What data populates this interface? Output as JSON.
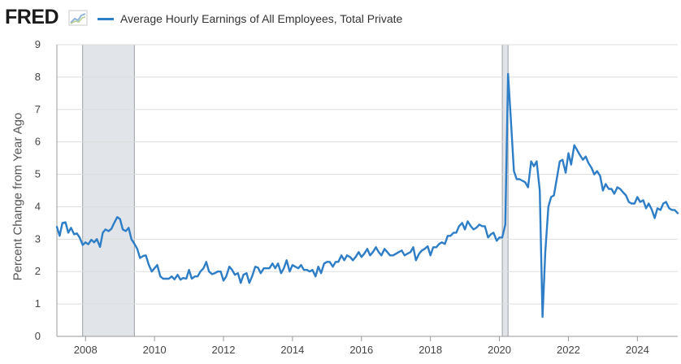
{
  "header": {
    "logo_text": "FRED",
    "logo_icon": "chart-line-icon"
  },
  "chart_data": {
    "type": "line",
    "title": "",
    "xlabel": "",
    "ylabel": "Percent Change from Year Ago",
    "xlim": [
      2007.17,
      2025.17
    ],
    "ylim": [
      0,
      9
    ],
    "grid": true,
    "legend_position": "top-left",
    "x_ticks": [
      "2008",
      "2010",
      "2012",
      "2014",
      "2016",
      "2018",
      "2020",
      "2022",
      "2024"
    ],
    "y_ticks": [
      "0",
      "1",
      "2",
      "3",
      "4",
      "5",
      "6",
      "7",
      "8",
      "9"
    ],
    "recessions": [
      {
        "start": "2007-12",
        "end": "2009-06"
      },
      {
        "start": "2020-02",
        "end": "2020-04"
      }
    ],
    "colors": {
      "series": "#2e7dc7",
      "recession": "#e1e4e8",
      "grid": "#dddddd"
    },
    "series": [
      {
        "name": "Average Hourly Earnings of All Employees, Total Private",
        "points": [
          [
            2007.17,
            3.38
          ],
          [
            2007.25,
            3.1
          ],
          [
            2007.33,
            3.5
          ],
          [
            2007.42,
            3.52
          ],
          [
            2007.5,
            3.2
          ],
          [
            2007.58,
            3.35
          ],
          [
            2007.67,
            3.15
          ],
          [
            2007.75,
            3.18
          ],
          [
            2007.83,
            3.05
          ],
          [
            2007.92,
            2.82
          ],
          [
            2008.0,
            2.9
          ],
          [
            2008.08,
            2.84
          ],
          [
            2008.17,
            2.98
          ],
          [
            2008.25,
            2.9
          ],
          [
            2008.33,
            3.0
          ],
          [
            2008.42,
            2.76
          ],
          [
            2008.5,
            3.2
          ],
          [
            2008.58,
            3.3
          ],
          [
            2008.67,
            3.25
          ],
          [
            2008.75,
            3.32
          ],
          [
            2008.83,
            3.5
          ],
          [
            2008.92,
            3.68
          ],
          [
            2009.0,
            3.62
          ],
          [
            2009.08,
            3.3
          ],
          [
            2009.17,
            3.25
          ],
          [
            2009.25,
            3.35
          ],
          [
            2009.33,
            3.0
          ],
          [
            2009.42,
            2.85
          ],
          [
            2009.5,
            2.7
          ],
          [
            2009.58,
            2.42
          ],
          [
            2009.67,
            2.48
          ],
          [
            2009.75,
            2.5
          ],
          [
            2009.83,
            2.22
          ],
          [
            2009.92,
            2.0
          ],
          [
            2010.0,
            2.1
          ],
          [
            2010.08,
            2.2
          ],
          [
            2010.17,
            1.85
          ],
          [
            2010.25,
            1.78
          ],
          [
            2010.33,
            1.78
          ],
          [
            2010.42,
            1.78
          ],
          [
            2010.5,
            1.85
          ],
          [
            2010.58,
            1.76
          ],
          [
            2010.67,
            1.9
          ],
          [
            2010.75,
            1.75
          ],
          [
            2010.83,
            1.8
          ],
          [
            2010.92,
            1.78
          ],
          [
            2011.0,
            2.05
          ],
          [
            2011.08,
            1.78
          ],
          [
            2011.17,
            1.85
          ],
          [
            2011.25,
            1.85
          ],
          [
            2011.33,
            2.0
          ],
          [
            2011.42,
            2.1
          ],
          [
            2011.5,
            2.3
          ],
          [
            2011.58,
            2.0
          ],
          [
            2011.67,
            1.92
          ],
          [
            2011.75,
            1.95
          ],
          [
            2011.83,
            2.0
          ],
          [
            2011.92,
            2.0
          ],
          [
            2012.0,
            1.72
          ],
          [
            2012.08,
            1.85
          ],
          [
            2012.17,
            2.15
          ],
          [
            2012.25,
            2.05
          ],
          [
            2012.33,
            1.9
          ],
          [
            2012.42,
            1.95
          ],
          [
            2012.5,
            1.65
          ],
          [
            2012.58,
            1.9
          ],
          [
            2012.67,
            1.95
          ],
          [
            2012.75,
            1.65
          ],
          [
            2012.83,
            1.85
          ],
          [
            2012.92,
            2.15
          ],
          [
            2013.0,
            2.12
          ],
          [
            2013.08,
            1.95
          ],
          [
            2013.17,
            2.1
          ],
          [
            2013.25,
            2.1
          ],
          [
            2013.33,
            2.1
          ],
          [
            2013.42,
            2.25
          ],
          [
            2013.5,
            2.1
          ],
          [
            2013.58,
            2.25
          ],
          [
            2013.67,
            1.95
          ],
          [
            2013.75,
            2.1
          ],
          [
            2013.83,
            2.35
          ],
          [
            2013.92,
            2.0
          ],
          [
            2014.0,
            2.2
          ],
          [
            2014.08,
            2.15
          ],
          [
            2014.17,
            2.1
          ],
          [
            2014.25,
            2.2
          ],
          [
            2014.33,
            2.05
          ],
          [
            2014.42,
            2.05
          ],
          [
            2014.5,
            2.0
          ],
          [
            2014.58,
            2.05
          ],
          [
            2014.67,
            1.85
          ],
          [
            2014.75,
            2.15
          ],
          [
            2014.83,
            1.95
          ],
          [
            2014.92,
            2.25
          ],
          [
            2015.0,
            2.3
          ],
          [
            2015.08,
            2.3
          ],
          [
            2015.17,
            2.15
          ],
          [
            2015.25,
            2.3
          ],
          [
            2015.33,
            2.3
          ],
          [
            2015.42,
            2.5
          ],
          [
            2015.5,
            2.35
          ],
          [
            2015.58,
            2.5
          ],
          [
            2015.67,
            2.45
          ],
          [
            2015.75,
            2.35
          ],
          [
            2015.83,
            2.45
          ],
          [
            2015.92,
            2.6
          ],
          [
            2016.0,
            2.45
          ],
          [
            2016.08,
            2.55
          ],
          [
            2016.17,
            2.7
          ],
          [
            2016.25,
            2.5
          ],
          [
            2016.33,
            2.6
          ],
          [
            2016.42,
            2.75
          ],
          [
            2016.5,
            2.6
          ],
          [
            2016.58,
            2.5
          ],
          [
            2016.67,
            2.7
          ],
          [
            2016.75,
            2.6
          ],
          [
            2016.83,
            2.5
          ],
          [
            2016.92,
            2.5
          ],
          [
            2017.0,
            2.55
          ],
          [
            2017.08,
            2.6
          ],
          [
            2017.17,
            2.65
          ],
          [
            2017.25,
            2.5
          ],
          [
            2017.33,
            2.55
          ],
          [
            2017.42,
            2.6
          ],
          [
            2017.5,
            2.75
          ],
          [
            2017.58,
            2.35
          ],
          [
            2017.67,
            2.55
          ],
          [
            2017.75,
            2.65
          ],
          [
            2017.83,
            2.7
          ],
          [
            2017.92,
            2.78
          ],
          [
            2018.0,
            2.5
          ],
          [
            2018.08,
            2.75
          ],
          [
            2018.17,
            2.75
          ],
          [
            2018.25,
            2.85
          ],
          [
            2018.33,
            2.9
          ],
          [
            2018.42,
            2.85
          ],
          [
            2018.5,
            3.1
          ],
          [
            2018.58,
            3.1
          ],
          [
            2018.67,
            3.2
          ],
          [
            2018.75,
            3.2
          ],
          [
            2018.83,
            3.4
          ],
          [
            2018.92,
            3.5
          ],
          [
            2019.0,
            3.3
          ],
          [
            2019.08,
            3.55
          ],
          [
            2019.17,
            3.4
          ],
          [
            2019.25,
            3.3
          ],
          [
            2019.33,
            3.35
          ],
          [
            2019.42,
            3.45
          ],
          [
            2019.5,
            3.4
          ],
          [
            2019.58,
            3.4
          ],
          [
            2019.67,
            3.05
          ],
          [
            2019.75,
            3.15
          ],
          [
            2019.83,
            3.2
          ],
          [
            2019.92,
            2.95
          ],
          [
            2020.0,
            3.05
          ],
          [
            2020.08,
            3.05
          ],
          [
            2020.17,
            3.45
          ],
          [
            2020.25,
            8.1
          ],
          [
            2020.33,
            6.7
          ],
          [
            2020.42,
            5.1
          ],
          [
            2020.5,
            4.85
          ],
          [
            2020.58,
            4.85
          ],
          [
            2020.67,
            4.8
          ],
          [
            2020.75,
            4.75
          ],
          [
            2020.83,
            4.6
          ],
          [
            2020.92,
            5.4
          ],
          [
            2021.0,
            5.25
          ],
          [
            2021.08,
            5.4
          ],
          [
            2021.17,
            4.5
          ],
          [
            2021.25,
            0.6
          ],
          [
            2021.33,
            2.6
          ],
          [
            2021.42,
            4.0
          ],
          [
            2021.5,
            4.3
          ],
          [
            2021.58,
            4.35
          ],
          [
            2021.67,
            4.9
          ],
          [
            2021.75,
            5.4
          ],
          [
            2021.83,
            5.45
          ],
          [
            2021.92,
            5.05
          ],
          [
            2022.0,
            5.65
          ],
          [
            2022.08,
            5.3
          ],
          [
            2022.17,
            5.9
          ],
          [
            2022.25,
            5.75
          ],
          [
            2022.33,
            5.6
          ],
          [
            2022.42,
            5.45
          ],
          [
            2022.5,
            5.55
          ],
          [
            2022.58,
            5.35
          ],
          [
            2022.67,
            5.2
          ],
          [
            2022.75,
            5.0
          ],
          [
            2022.83,
            5.1
          ],
          [
            2022.92,
            4.95
          ],
          [
            2023.0,
            4.5
          ],
          [
            2023.08,
            4.7
          ],
          [
            2023.17,
            4.55
          ],
          [
            2023.25,
            4.55
          ],
          [
            2023.33,
            4.4
          ],
          [
            2023.42,
            4.6
          ],
          [
            2023.5,
            4.55
          ],
          [
            2023.58,
            4.45
          ],
          [
            2023.67,
            4.35
          ],
          [
            2023.75,
            4.15
          ],
          [
            2023.83,
            4.1
          ],
          [
            2023.92,
            4.1
          ],
          [
            2024.0,
            4.3
          ],
          [
            2024.08,
            4.15
          ],
          [
            2024.17,
            4.2
          ],
          [
            2024.25,
            3.95
          ],
          [
            2024.33,
            4.1
          ],
          [
            2024.42,
            3.9
          ],
          [
            2024.5,
            3.65
          ],
          [
            2024.58,
            3.95
          ],
          [
            2024.67,
            3.9
          ],
          [
            2024.75,
            4.1
          ],
          [
            2024.83,
            4.15
          ],
          [
            2024.92,
            3.95
          ],
          [
            2025.0,
            3.9
          ],
          [
            2025.08,
            3.9
          ],
          [
            2025.17,
            3.8
          ]
        ]
      }
    ]
  }
}
